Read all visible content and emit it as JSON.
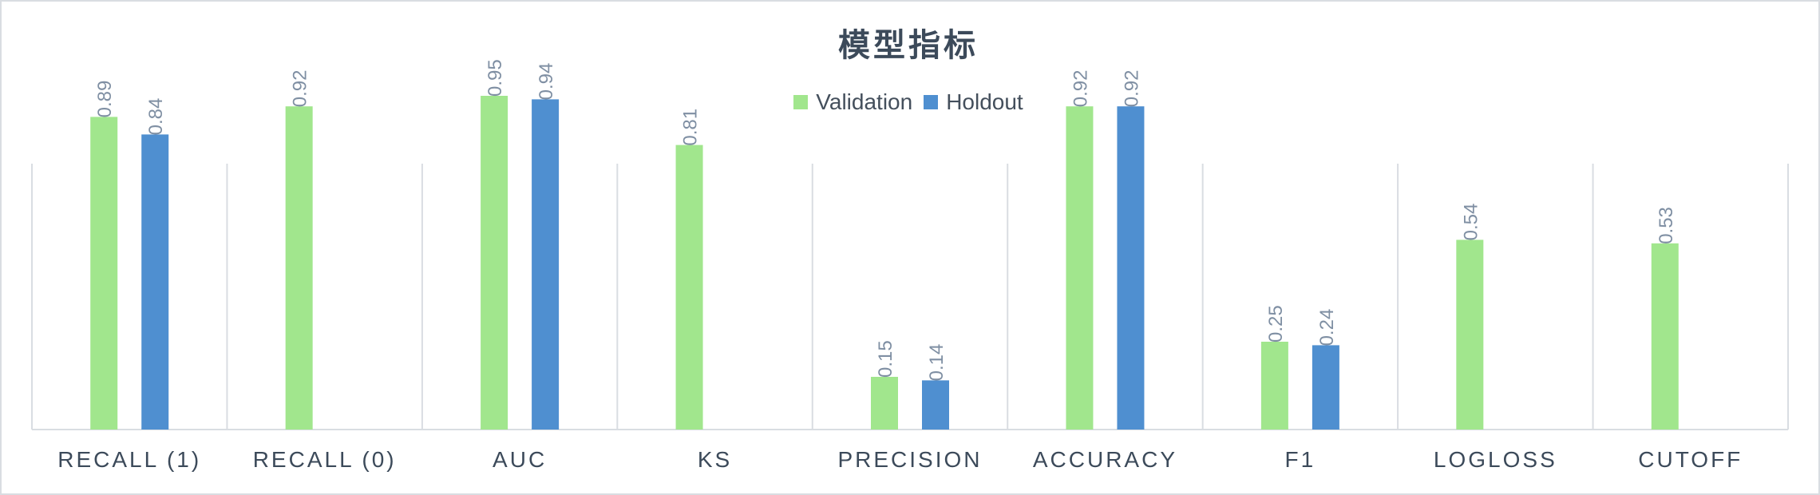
{
  "chart_data": {
    "type": "bar",
    "title": "模型指标",
    "categories": [
      "RECALL (1)",
      "RECALL (0)",
      "AUC",
      "KS",
      "PRECISION",
      "ACCURACY",
      "F1",
      "LOGLOSS",
      "CUTOFF"
    ],
    "series": [
      {
        "name": "Validation",
        "color": "#a1e68d",
        "values": [
          0.89,
          0.92,
          0.95,
          0.81,
          0.15,
          0.92,
          0.25,
          0.54,
          0.53
        ]
      },
      {
        "name": "Holdout",
        "color": "#4f8fd0",
        "values": [
          0.84,
          null,
          0.94,
          null,
          0.14,
          0.92,
          0.24,
          null,
          null
        ]
      }
    ],
    "ylim": [
      0,
      1
    ],
    "grid": false,
    "legend_position": "top"
  }
}
